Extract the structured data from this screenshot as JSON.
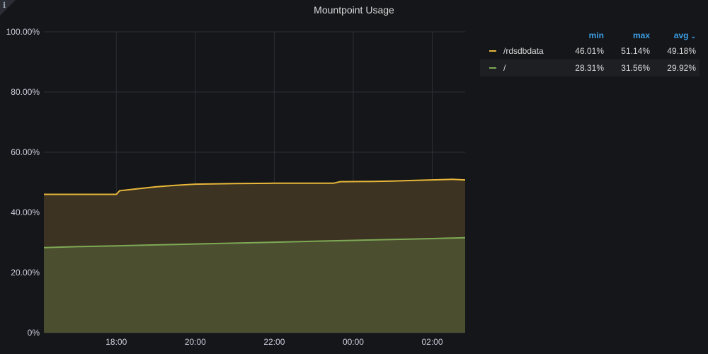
{
  "panel": {
    "title": "Mountpoint Usage",
    "info_icon": "i"
  },
  "legend": {
    "headers": {
      "min": "min",
      "max": "max",
      "avg": "avg",
      "sort_icon": "chevron-down-icon"
    },
    "rows": [
      {
        "name": "/rdsdbdata",
        "color": "#e8b73a",
        "min": "46.01%",
        "max": "51.14%",
        "avg": "49.18%"
      },
      {
        "name": "/",
        "color": "#7ea955",
        "min": "28.31%",
        "max": "31.56%",
        "avg": "29.92%"
      }
    ]
  },
  "chart_data": {
    "type": "area",
    "title": "Mountpoint Usage",
    "y_ticks": [
      "0%",
      "20.00%",
      "40.00%",
      "60.00%",
      "80.00%",
      "100.00%"
    ],
    "x_ticks": [
      "18:00",
      "20:00",
      "22:00",
      "00:00",
      "02:00"
    ],
    "ylim": [
      0,
      100
    ],
    "xlim": [
      "16:10",
      "02:50"
    ],
    "grid": true,
    "legend_position": "right",
    "series": [
      {
        "name": "/rdsdbdata",
        "color": "#e8b73a",
        "fill": "#3c3322",
        "x": [
          "16:10",
          "18:00",
          "18:05",
          "18:30",
          "19:00",
          "19:30",
          "20:00",
          "21:00",
          "22:00",
          "23:00",
          "23:30",
          "23:40",
          "00:30",
          "01:00",
          "01:30",
          "02:00",
          "02:30",
          "02:50"
        ],
        "values": [
          46.0,
          46.0,
          47.2,
          47.8,
          48.5,
          49.0,
          49.4,
          49.6,
          49.7,
          49.7,
          49.7,
          50.2,
          50.3,
          50.4,
          50.6,
          50.8,
          51.0,
          50.8
        ]
      },
      {
        "name": "/",
        "color": "#7ea955",
        "fill": "#4b4e2f",
        "x": [
          "16:10",
          "17:00",
          "18:00",
          "19:00",
          "20:00",
          "21:00",
          "22:00",
          "23:00",
          "00:00",
          "01:00",
          "02:00",
          "02:50"
        ],
        "values": [
          28.3,
          28.6,
          28.9,
          29.2,
          29.5,
          29.8,
          30.1,
          30.4,
          30.7,
          31.0,
          31.3,
          31.6
        ]
      }
    ]
  }
}
